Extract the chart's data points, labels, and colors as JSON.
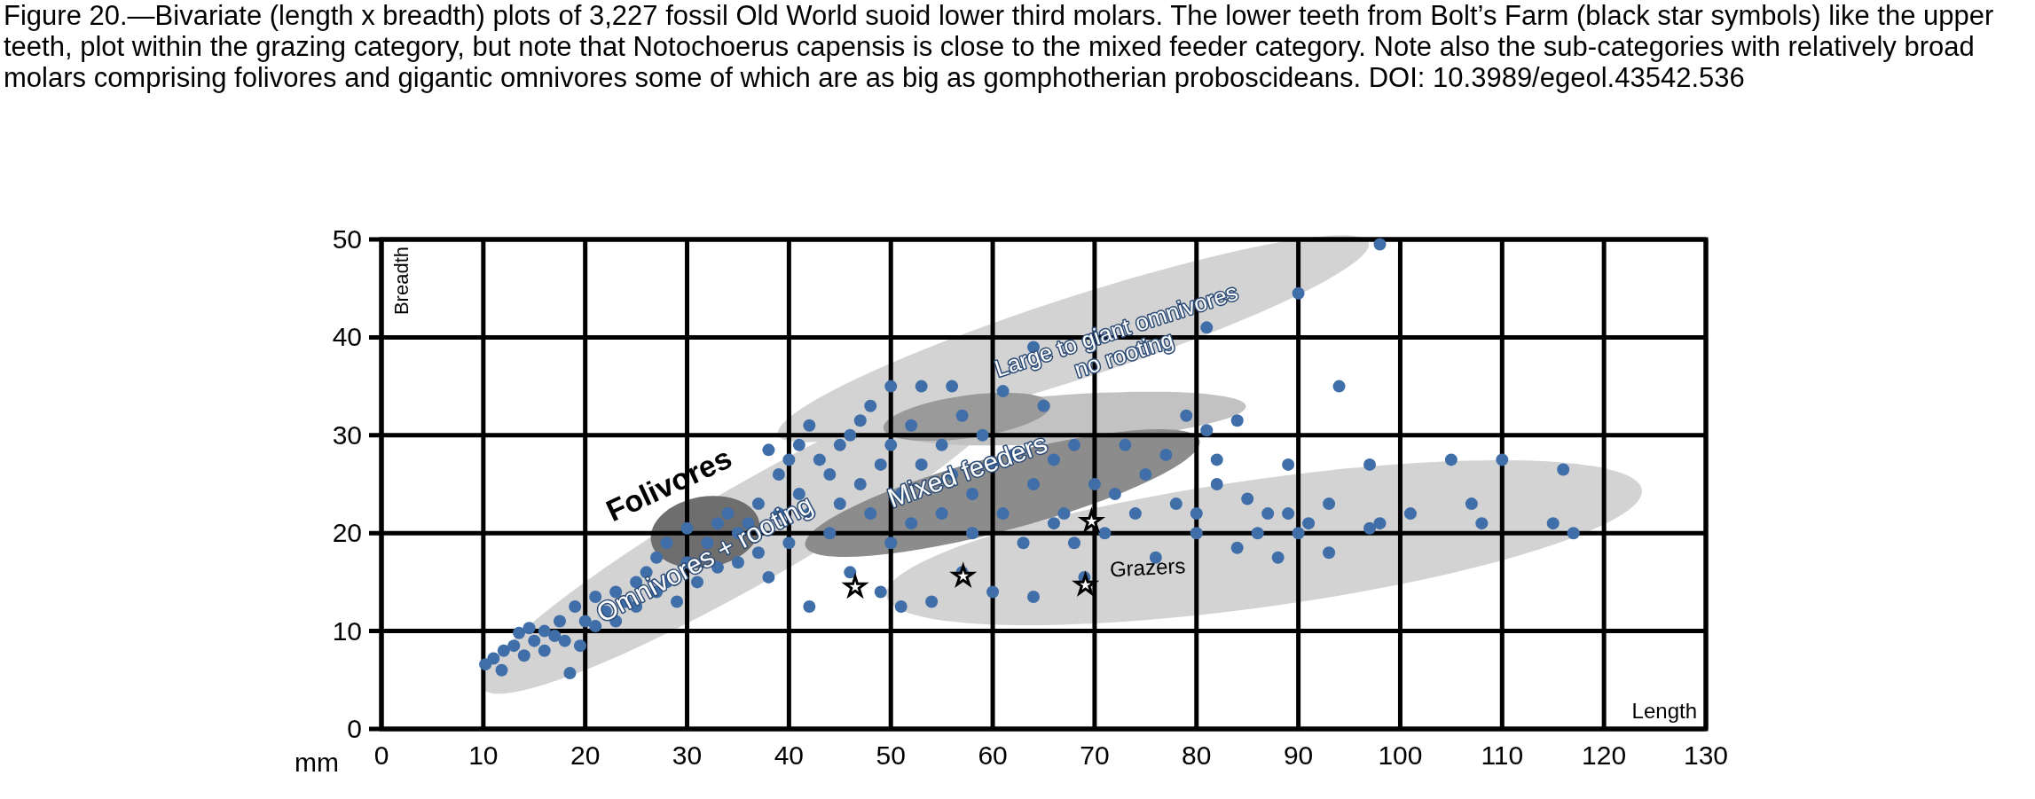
{
  "chart_data": {
    "type": "scatter",
    "title": "Figure 20.—Bivariate (length x breadth) plots of 3,227 fossil Old World suoid lower third molars. The lower teeth from Bolt’s Farm (black star symbols) like the upper teeth, plot within the grazing category, but note that Notochoerus capensis is close to the mixed feeder category. Note also the sub-categories with relatively broad molars comprising folivores and gigantic omnivores some of which are as big as gomphotherian proboscideans. DOI: 10.3989/egeol.43542.536",
    "xlabel": "Length",
    "ylabel": "Breadth",
    "xlim": [
      0,
      130
    ],
    "xticks": [
      0,
      10,
      20,
      30,
      40,
      50,
      60,
      70,
      80,
      90,
      100,
      110,
      120,
      130
    ],
    "ylim": [
      0,
      50
    ],
    "yticks": [
      0,
      10,
      20,
      30,
      40,
      50
    ],
    "grid": true,
    "annotations": [
      "mm",
      "Folivores",
      "Omnivores + rooting",
      "Mixed feeders",
      "Grazers",
      "Large to giant omnivores\nno rooting"
    ],
    "series": [
      {
        "color": "#3f6ea8",
        "marker": "circle",
        "x": [
          10.2,
          11,
          11.8,
          12,
          13,
          13.5,
          14,
          14.5,
          15,
          16,
          16,
          17,
          17.5,
          18.5,
          18,
          19,
          19.5,
          20,
          21,
          21,
          22,
          23,
          23,
          24,
          25,
          25,
          26,
          27,
          27,
          28,
          28,
          29,
          30,
          30,
          31,
          32,
          33,
          33,
          34,
          35,
          35,
          36,
          37,
          37,
          38,
          38,
          39,
          39,
          40,
          40,
          41,
          41,
          42,
          42,
          42,
          43,
          44,
          44,
          45,
          45,
          46,
          46,
          47,
          47,
          48,
          48,
          49,
          49,
          50,
          50,
          50,
          51,
          51,
          52,
          52,
          53,
          53,
          54,
          55,
          55,
          56,
          56,
          57,
          57,
          58,
          58,
          59,
          60,
          60,
          61,
          61,
          62,
          63,
          64,
          64,
          64,
          65,
          66,
          66,
          67,
          68,
          68,
          69,
          70,
          71,
          72,
          73,
          74,
          75,
          76,
          77,
          78,
          79,
          80,
          80,
          81,
          81,
          82,
          82,
          84,
          84,
          85,
          86,
          87,
          88,
          89,
          89,
          90,
          90,
          91,
          93,
          93,
          94,
          97,
          97,
          98,
          98,
          101,
          105,
          107,
          108,
          110,
          115,
          116,
          117
        ],
        "values": [
          6.6,
          7.2,
          6,
          8,
          8.5,
          9.8,
          7.5,
          10.3,
          9,
          8,
          10,
          9.5,
          11,
          5.7,
          9,
          12.5,
          8.5,
          11,
          13.5,
          10.5,
          12,
          14,
          11,
          13,
          15,
          12.5,
          16,
          14,
          17.5,
          19,
          15,
          13,
          20.5,
          17,
          15,
          19,
          21,
          16.5,
          22,
          20,
          17,
          21,
          23,
          18,
          15.5,
          28.5,
          22,
          26,
          27.5,
          19,
          29,
          24,
          31,
          12.5,
          22,
          27.5,
          26,
          20,
          29,
          23,
          30,
          16,
          31.5,
          25,
          33,
          22,
          27,
          14,
          35,
          29,
          19,
          24,
          12.5,
          31,
          21,
          35,
          27,
          13,
          29,
          22,
          35,
          26,
          16,
          32,
          24,
          20,
          30,
          27,
          14,
          22,
          34.5,
          28,
          19,
          39,
          25,
          13.5,
          33,
          27.5,
          21,
          22,
          29,
          19,
          15.5,
          25,
          20,
          24,
          29,
          22,
          26,
          17.5,
          28,
          23,
          32,
          22,
          20,
          30.5,
          41,
          25,
          27.5,
          31.5,
          18.5,
          23.5,
          20,
          22,
          17.5,
          27,
          22,
          44.5,
          20,
          21,
          23,
          18,
          35,
          20.5,
          27,
          21,
          49.5,
          22,
          27.5,
          23,
          21,
          27.5,
          21,
          26.5,
          20
        ]
      },
      {
        "color": "#000000",
        "marker": "star",
        "x": [
          46.5,
          57.1,
          69.1,
          69.7
        ],
        "values": [
          14.5,
          15.6,
          14.7,
          21.2
        ]
      }
    ]
  }
}
